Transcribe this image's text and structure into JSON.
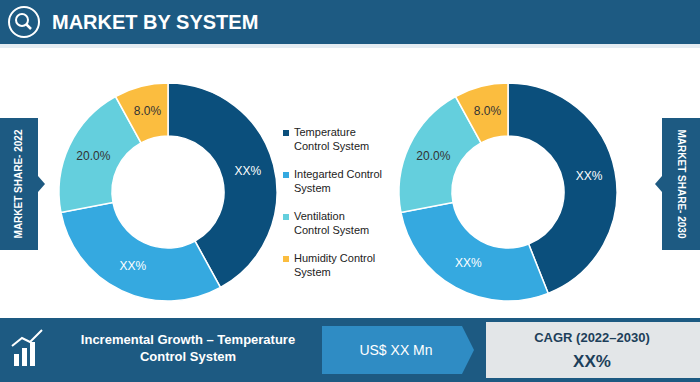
{
  "chart_data": {
    "type": "donut",
    "title": "MARKET BY SYSTEM",
    "categories": [
      "Temperature Control System",
      "Integarted Control System",
      "Ventilation Control System",
      "Humidity Control System"
    ],
    "colors": [
      "#0b4f7c",
      "#35a9e0",
      "#64cfdd",
      "#fbbd3f"
    ],
    "series": [
      {
        "name": "MARKET SHARE- 2022",
        "values": [
          42,
          30,
          20,
          8
        ],
        "value_labels": [
          "XX%",
          "XX%",
          "20.0%",
          "8.0%"
        ]
      },
      {
        "name": "MARKET SHARE- 2030",
        "values": [
          44,
          28,
          20,
          8
        ],
        "value_labels": [
          "XX%",
          "XX%",
          "20.0%",
          "8.0%"
        ]
      }
    ],
    "data_labels": true
  },
  "footer": {
    "label": "Incremental Growth – Temperature Control System",
    "value": "US$ XX Mn",
    "cagr_label": "CAGR (2022–2030)",
    "cagr_value": "XX%"
  }
}
